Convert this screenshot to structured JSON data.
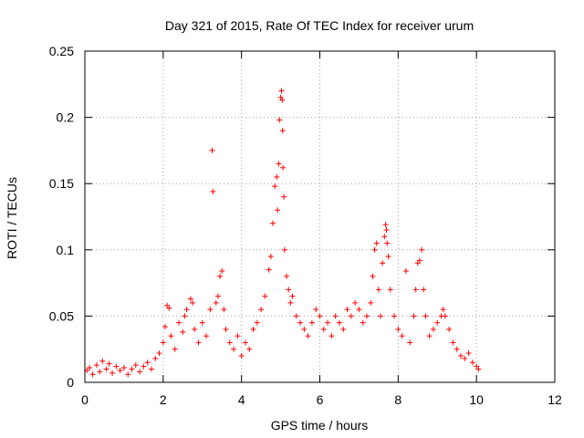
{
  "chart_data": {
    "type": "scatter",
    "title": "Day 321 of 2015, Rate Of TEC Index for receiver urum",
    "xlabel": "GPS time / hours",
    "ylabel": "ROTI / TECUs",
    "xlim": [
      0,
      12
    ],
    "ylim": [
      0,
      0.25
    ],
    "xticks": [
      0,
      2,
      4,
      6,
      8,
      10,
      12
    ],
    "yticks": [
      0,
      0.05,
      0.1,
      0.15,
      0.2,
      0.25
    ],
    "xtick_labels": [
      "0",
      "2",
      "4",
      "6",
      "8",
      "10",
      "12"
    ],
    "ytick_labels": [
      "0",
      "0.05",
      "0.1",
      "0.15",
      "0.2",
      "0.25"
    ],
    "grid": true,
    "marker": "+",
    "color": "#ff0000",
    "series": [
      {
        "name": "ROTI",
        "points": [
          [
            0.05,
            0.009
          ],
          [
            0.12,
            0.011
          ],
          [
            0.2,
            0.006
          ],
          [
            0.3,
            0.013
          ],
          [
            0.38,
            0.008
          ],
          [
            0.45,
            0.016
          ],
          [
            0.55,
            0.01
          ],
          [
            0.62,
            0.014
          ],
          [
            0.7,
            0.007
          ],
          [
            0.8,
            0.012
          ],
          [
            0.9,
            0.009
          ],
          [
            1.0,
            0.011
          ],
          [
            1.1,
            0.006
          ],
          [
            1.2,
            0.01
          ],
          [
            1.3,
            0.013
          ],
          [
            1.4,
            0.008
          ],
          [
            1.5,
            0.012
          ],
          [
            1.6,
            0.015
          ],
          [
            1.7,
            0.01
          ],
          [
            1.8,
            0.018
          ],
          [
            1.9,
            0.022
          ],
          [
            2.0,
            0.03
          ],
          [
            2.05,
            0.042
          ],
          [
            2.1,
            0.058
          ],
          [
            2.15,
            0.056
          ],
          [
            2.2,
            0.035
          ],
          [
            2.3,
            0.025
          ],
          [
            2.4,
            0.045
          ],
          [
            2.5,
            0.038
          ],
          [
            2.55,
            0.05
          ],
          [
            2.6,
            0.055
          ],
          [
            2.7,
            0.063
          ],
          [
            2.75,
            0.06
          ],
          [
            2.8,
            0.04
          ],
          [
            2.9,
            0.03
          ],
          [
            3.0,
            0.045
          ],
          [
            3.1,
            0.035
          ],
          [
            3.2,
            0.055
          ],
          [
            3.25,
            0.175
          ],
          [
            3.27,
            0.144
          ],
          [
            3.35,
            0.06
          ],
          [
            3.4,
            0.065
          ],
          [
            3.45,
            0.08
          ],
          [
            3.5,
            0.084
          ],
          [
            3.55,
            0.055
          ],
          [
            3.6,
            0.04
          ],
          [
            3.7,
            0.03
          ],
          [
            3.8,
            0.025
          ],
          [
            3.9,
            0.035
          ],
          [
            4.0,
            0.02
          ],
          [
            4.1,
            0.03
          ],
          [
            4.2,
            0.025
          ],
          [
            4.3,
            0.04
          ],
          [
            4.4,
            0.045
          ],
          [
            4.5,
            0.055
          ],
          [
            4.6,
            0.065
          ],
          [
            4.7,
            0.085
          ],
          [
            4.75,
            0.095
          ],
          [
            4.8,
            0.12
          ],
          [
            4.85,
            0.148
          ],
          [
            4.9,
            0.155
          ],
          [
            4.92,
            0.13
          ],
          [
            4.95,
            0.165
          ],
          [
            4.97,
            0.198
          ],
          [
            5.0,
            0.215
          ],
          [
            5.02,
            0.22
          ],
          [
            5.04,
            0.213
          ],
          [
            5.05,
            0.19
          ],
          [
            5.06,
            0.162
          ],
          [
            5.08,
            0.14
          ],
          [
            5.1,
            0.1
          ],
          [
            5.15,
            0.08
          ],
          [
            5.2,
            0.07
          ],
          [
            5.25,
            0.06
          ],
          [
            5.3,
            0.065
          ],
          [
            5.4,
            0.05
          ],
          [
            5.5,
            0.045
          ],
          [
            5.6,
            0.04
          ],
          [
            5.7,
            0.035
          ],
          [
            5.8,
            0.045
          ],
          [
            5.9,
            0.055
          ],
          [
            6.0,
            0.05
          ],
          [
            6.1,
            0.04
          ],
          [
            6.2,
            0.045
          ],
          [
            6.3,
            0.035
          ],
          [
            6.4,
            0.05
          ],
          [
            6.5,
            0.045
          ],
          [
            6.6,
            0.04
          ],
          [
            6.7,
            0.055
          ],
          [
            6.8,
            0.05
          ],
          [
            6.9,
            0.06
          ],
          [
            7.0,
            0.055
          ],
          [
            7.1,
            0.045
          ],
          [
            7.2,
            0.05
          ],
          [
            7.3,
            0.06
          ],
          [
            7.35,
            0.08
          ],
          [
            7.4,
            0.1
          ],
          [
            7.45,
            0.105
          ],
          [
            7.5,
            0.07
          ],
          [
            7.55,
            0.05
          ],
          [
            7.6,
            0.09
          ],
          [
            7.65,
            0.11
          ],
          [
            7.68,
            0.119
          ],
          [
            7.7,
            0.115
          ],
          [
            7.72,
            0.105
          ],
          [
            7.75,
            0.095
          ],
          [
            7.8,
            0.07
          ],
          [
            7.9,
            0.05
          ],
          [
            8.0,
            0.04
          ],
          [
            8.1,
            0.035
          ],
          [
            8.2,
            0.084
          ],
          [
            8.3,
            0.03
          ],
          [
            8.4,
            0.05
          ],
          [
            8.45,
            0.07
          ],
          [
            8.5,
            0.09
          ],
          [
            8.55,
            0.092
          ],
          [
            8.6,
            0.1
          ],
          [
            8.65,
            0.07
          ],
          [
            8.7,
            0.05
          ],
          [
            8.8,
            0.035
          ],
          [
            8.9,
            0.04
          ],
          [
            9.0,
            0.045
          ],
          [
            9.1,
            0.05
          ],
          [
            9.15,
            0.055
          ],
          [
            9.2,
            0.05
          ],
          [
            9.3,
            0.04
          ],
          [
            9.4,
            0.03
          ],
          [
            9.5,
            0.025
          ],
          [
            9.6,
            0.02
          ],
          [
            9.7,
            0.018
          ],
          [
            9.8,
            0.022
          ],
          [
            9.9,
            0.015
          ],
          [
            10.0,
            0.012
          ],
          [
            10.05,
            0.01
          ]
        ]
      }
    ]
  }
}
